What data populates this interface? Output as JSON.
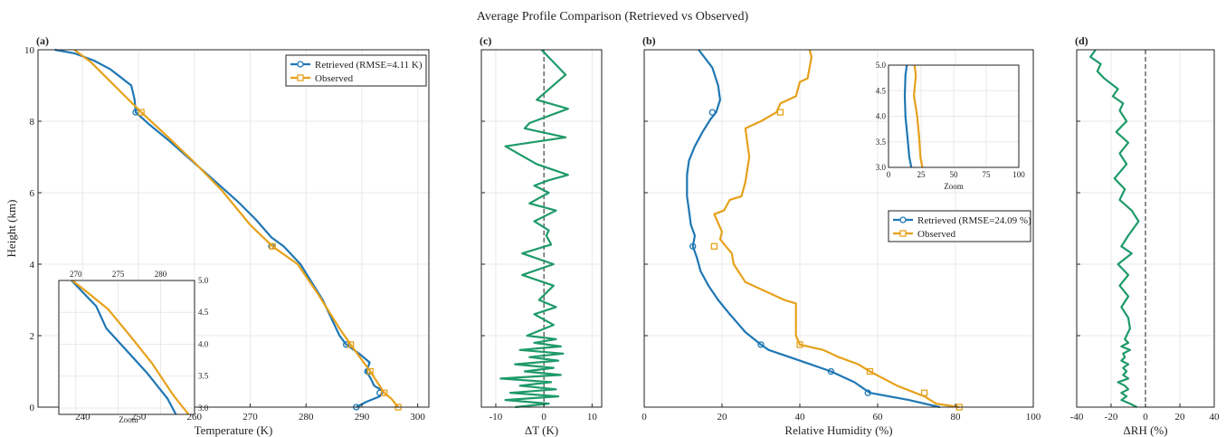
{
  "suptitle": "Average Profile Comparison (Retrieved vs Observed)",
  "colors": {
    "retrieved": "#1f77b4",
    "observed": "#e6a11b",
    "diff": "#1f9a6a",
    "grid": "#e8e8e8",
    "zero_line": "#333333"
  },
  "chart_data": [
    {
      "panel": "(a)",
      "type": "line",
      "xlabel": "Temperature (K)",
      "ylabel": "Height (km)",
      "xlim": [
        232,
        302
      ],
      "ylim": [
        0,
        10
      ],
      "xticks": [
        240,
        250,
        260,
        270,
        280,
        290,
        300
      ],
      "yticks": [
        0,
        2,
        4,
        6,
        8,
        10
      ],
      "legend_position": "top-right",
      "series": [
        {
          "name": "Retrieved (RMSE=4.11 K)",
          "color": "#1f77b4",
          "marker": "circle",
          "x": [
            289.0,
            290.8,
            293.2,
            293.8,
            292.2,
            291.6,
            290.8,
            291.4,
            289.5,
            287.2,
            286.0,
            284.5,
            283.0,
            281.0,
            279.0,
            276.0,
            273.8,
            271.0,
            267.8,
            263.5,
            259.5,
            255.5,
            252.0,
            249.5,
            249.3,
            248.7,
            245.0,
            242.0,
            238.5,
            235.0
          ],
          "y": [
            0.0,
            0.15,
            0.3,
            0.45,
            0.6,
            0.8,
            1.0,
            1.25,
            1.5,
            1.75,
            2.0,
            2.5,
            3.0,
            3.5,
            4.0,
            4.5,
            4.75,
            5.25,
            5.75,
            6.35,
            6.9,
            7.45,
            7.9,
            8.25,
            8.6,
            9.0,
            9.45,
            9.7,
            9.9,
            10.0
          ],
          "marker_x": [
            289.0,
            293.2,
            291.0,
            287.2,
            273.8,
            249.5
          ],
          "marker_y": [
            0.0,
            0.4,
            1.0,
            1.75,
            4.5,
            8.25
          ]
        },
        {
          "name": "Observed",
          "color": "#e6a11b",
          "marker": "square",
          "x": [
            296.5,
            295.2,
            294.0,
            291.5,
            288.0,
            286.0,
            282.0,
            278.5,
            274.0,
            270.0,
            265.0,
            260.0,
            255.0,
            250.5,
            246.0,
            241.5,
            238.5
          ],
          "y": [
            0.0,
            0.25,
            0.4,
            1.0,
            1.75,
            2.2,
            3.2,
            4.0,
            4.5,
            5.1,
            6.05,
            6.85,
            7.6,
            8.25,
            8.95,
            9.65,
            10.0
          ],
          "marker_x": [
            296.5,
            294.0,
            291.5,
            288.0,
            274.0,
            250.5
          ],
          "marker_y": [
            0.0,
            0.4,
            1.0,
            1.75,
            4.5,
            8.25
          ]
        }
      ],
      "inset": {
        "label": "Zoom",
        "xlim": [
          268,
          284
        ],
        "ylim": [
          2.9,
          5.0
        ],
        "xticks": [
          270,
          275,
          280
        ],
        "yticks": [
          3.0,
          3.5,
          4.0,
          4.5,
          5.0
        ],
        "series": [
          {
            "color": "#1f77b4",
            "x": [
              269.5,
              271.3,
              272.4,
              273.6,
              276.0,
              278.4,
              280.8,
              281.8
            ],
            "y": [
              5.0,
              4.75,
              4.6,
              4.25,
              3.9,
              3.55,
              3.15,
              2.9
            ]
          },
          {
            "color": "#e6a11b",
            "x": [
              269.6,
              271.5,
              273.8,
              276.3,
              279.0,
              281.5,
              283.3
            ],
            "y": [
              5.0,
              4.8,
              4.55,
              4.15,
              3.7,
              3.2,
              2.9
            ]
          }
        ]
      }
    },
    {
      "panel": "(c)",
      "type": "line",
      "xlabel": "ΔT (K)",
      "xlim": [
        -13,
        12
      ],
      "ylim": [
        0,
        10
      ],
      "xticks": [
        -10,
        0,
        10
      ],
      "zero_line": 0,
      "series": [
        {
          "name": "ΔT",
          "color": "#1f9a6a",
          "x": [
            -6.0,
            1.0,
            -8.0,
            3.0,
            -7.0,
            2.5,
            -5.0,
            1.5,
            -9.0,
            3.5,
            -4.0,
            2.0,
            -6.0,
            3.0,
            -3.0,
            4.0,
            -5.0,
            3.5,
            -2.0,
            2.5,
            -3.5,
            2.0,
            -2.0,
            2.5,
            -1.0,
            2.0,
            -4.5,
            2.0,
            -4.5,
            1.5,
            0.5,
            1.0,
            -2.0,
            2.5,
            -3.0,
            1.0,
            -2.0,
            1.0,
            5.0,
            -1.5,
            -8.0,
            4.5,
            -4.0,
            -3.0,
            5.0,
            -1.5,
            4.5,
            -0.5
          ],
          "y": [
            0.0,
            0.1,
            0.2,
            0.3,
            0.4,
            0.5,
            0.6,
            0.7,
            0.8,
            0.9,
            1.0,
            1.1,
            1.2,
            1.3,
            1.4,
            1.5,
            1.6,
            1.7,
            1.8,
            1.9,
            2.0,
            2.3,
            2.6,
            2.8,
            3.0,
            3.4,
            3.7,
            4.0,
            4.3,
            4.55,
            4.8,
            4.95,
            5.2,
            5.5,
            5.7,
            6.0,
            6.2,
            6.35,
            6.5,
            6.8,
            7.3,
            7.55,
            7.8,
            7.95,
            8.35,
            8.6,
            9.3,
            10.0
          ]
        }
      ]
    },
    {
      "panel": "(b)",
      "type": "line",
      "xlabel": "Relative Humidity (%)",
      "xlim": [
        0,
        100
      ],
      "ylim": [
        0,
        10
      ],
      "xticks": [
        0,
        20,
        40,
        60,
        80,
        100
      ],
      "legend_position": "center-right",
      "series": [
        {
          "name": "Retrieved (RMSE=24.09 %)",
          "color": "#1f77b4",
          "marker": "circle",
          "x": [
            76.0,
            68.0,
            58.0,
            54.0,
            48.0,
            40.0,
            32.0,
            30.0,
            26.0,
            22.0,
            19.0,
            16.5,
            14.5,
            13.5,
            12.5,
            13.0,
            12.0,
            11.5,
            11.0,
            11.0,
            11.5,
            13.0,
            15.0,
            17.0,
            18.5,
            19.5,
            19.0,
            17.5,
            14.0
          ],
          "y": [
            0.0,
            0.2,
            0.4,
            0.7,
            1.0,
            1.3,
            1.6,
            1.75,
            2.1,
            2.6,
            3.0,
            3.4,
            3.8,
            4.2,
            4.5,
            4.8,
            5.1,
            5.5,
            5.9,
            6.5,
            6.9,
            7.3,
            7.7,
            8.05,
            8.25,
            8.6,
            9.0,
            9.5,
            10.0
          ],
          "marker_x": [
            57.5,
            48.0,
            30.0,
            12.5,
            17.5
          ],
          "marker_y": [
            0.4,
            1.0,
            1.75,
            4.5,
            8.25
          ]
        },
        {
          "name": "Observed",
          "color": "#e6a11b",
          "marker": "square",
          "x": [
            81.0,
            75.0,
            72.0,
            65.0,
            58.0,
            55.0,
            50.0,
            46.0,
            40.0,
            39.0,
            39.0,
            36.0,
            32.0,
            26.0,
            23.0,
            22.5,
            21.0,
            19.5,
            20.0,
            18.0,
            20.5,
            22.0,
            25.0,
            26.0,
            27.0,
            26.0,
            30.0,
            34.0,
            35.0,
            39.0,
            40.0,
            42.0,
            43.0,
            42.5
          ],
          "y": [
            0.0,
            0.1,
            0.3,
            0.6,
            1.0,
            1.2,
            1.4,
            1.6,
            1.75,
            2.0,
            2.9,
            3.0,
            3.2,
            3.5,
            4.0,
            4.3,
            4.5,
            4.7,
            4.9,
            5.4,
            5.5,
            5.8,
            5.9,
            6.3,
            7.0,
            7.8,
            8.0,
            8.25,
            8.5,
            8.7,
            9.1,
            9.2,
            9.8,
            10.0
          ],
          "marker_x": [
            81.0,
            72.0,
            58.0,
            40.0,
            18.0,
            35.0
          ],
          "marker_y": [
            0.0,
            0.4,
            1.0,
            1.75,
            4.5,
            8.25
          ]
        }
      ],
      "inset": {
        "label": "Zoom",
        "xlim": [
          0,
          100
        ],
        "ylim": [
          3.0,
          5.0
        ],
        "xticks": [
          0,
          25,
          50,
          75,
          100
        ],
        "yticks": [
          3.0,
          3.5,
          4.0,
          4.5,
          5.0
        ],
        "series": [
          {
            "color": "#1f77b4",
            "x": [
              14.0,
              13.0,
              12.5,
              13.0,
              14.5,
              16.0,
              17.5
            ],
            "y": [
              5.0,
              4.8,
              4.4,
              4.0,
              3.6,
              3.2,
              3.0
            ]
          },
          {
            "color": "#e6a11b",
            "x": [
              20.0,
              21.0,
              19.5,
              22.0,
              23.5,
              24.5,
              26.0
            ],
            "y": [
              5.0,
              4.8,
              4.4,
              4.0,
              3.6,
              3.2,
              3.0
            ]
          }
        ]
      }
    },
    {
      "panel": "(d)",
      "type": "line",
      "xlabel": "ΔRH (%)",
      "xlim": [
        -40,
        40
      ],
      "ylim": [
        0,
        10
      ],
      "xticks": [
        -40,
        -20,
        0,
        20,
        40
      ],
      "zero_line": 0,
      "series": [
        {
          "name": "ΔRH",
          "color": "#1f9a6a",
          "x": [
            -5.0,
            -9.0,
            -14.0,
            -11.0,
            -14.0,
            -10.0,
            -12.0,
            -16.0,
            -10.0,
            -13.0,
            -11.0,
            -13.0,
            -10.0,
            -14.0,
            -12.0,
            -13.0,
            -9.0,
            -14.0,
            -10.0,
            -12.0,
            -9.0,
            -10.0,
            -14.0,
            -10.0,
            -15.0,
            -10.0,
            -16.0,
            -8.0,
            -14.0,
            -10.0,
            -4.0,
            -8.0,
            -15.0,
            -12.0,
            -18.0,
            -11.0,
            -15.0,
            -10.0,
            -17.0,
            -11.0,
            -15.0,
            -13.0,
            -19.0,
            -16.0,
            -24.0,
            -28.0,
            -26.0,
            -32.0,
            -29.0
          ],
          "y": [
            0.0,
            0.1,
            0.2,
            0.3,
            0.4,
            0.5,
            0.6,
            0.7,
            0.8,
            0.9,
            1.0,
            1.1,
            1.2,
            1.3,
            1.4,
            1.5,
            1.6,
            1.7,
            1.8,
            1.9,
            2.2,
            2.5,
            2.8,
            3.1,
            3.4,
            3.7,
            4.0,
            4.3,
            4.5,
            4.8,
            5.2,
            5.5,
            5.8,
            6.1,
            6.4,
            6.8,
            7.1,
            7.4,
            7.7,
            8.0,
            8.3,
            8.5,
            8.7,
            8.9,
            9.2,
            9.4,
            9.6,
            9.8,
            10.0
          ]
        }
      ]
    }
  ]
}
